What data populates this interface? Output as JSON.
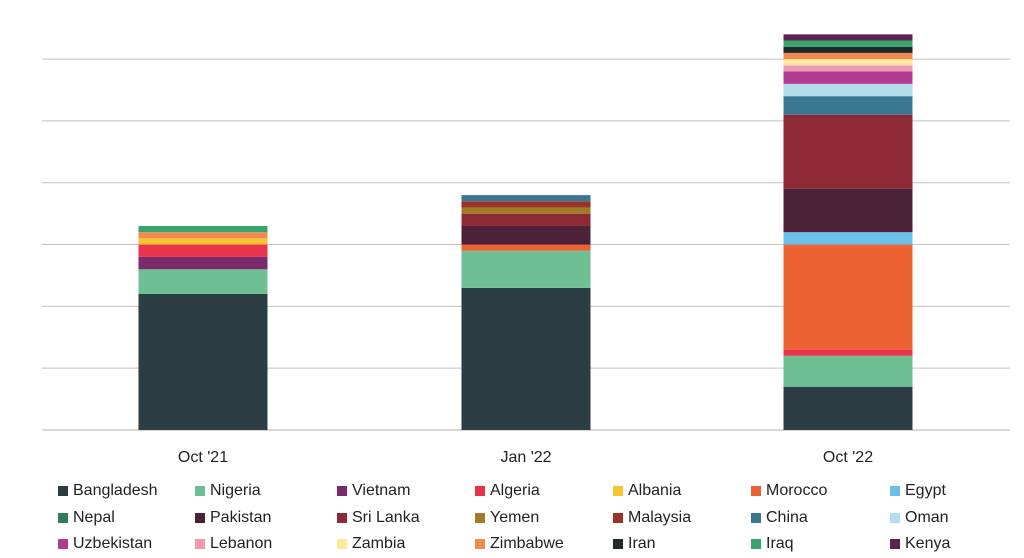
{
  "chart_data": {
    "type": "bar",
    "stacked": true,
    "title": "",
    "xlabel": "",
    "ylabel": "",
    "y_axis_labels_shown": false,
    "grid": true,
    "legend_placement": "bottom",
    "categories": [
      "Oct '21",
      "Jan '22",
      "Oct '22"
    ],
    "series": [
      {
        "name": "Bangladesh",
        "color": "#2c3e44",
        "values": [
          22,
          23,
          7
        ]
      },
      {
        "name": "Nigeria",
        "color": "#6fbf94",
        "values": [
          4,
          6,
          5
        ]
      },
      {
        "name": "Vietnam",
        "color": "#7b2a6e",
        "values": [
          2,
          0,
          0
        ]
      },
      {
        "name": "Algeria",
        "color": "#e8334a",
        "values": [
          2,
          0,
          1
        ]
      },
      {
        "name": "Albania",
        "color": "#f7c531",
        "values": [
          1,
          0,
          0
        ]
      },
      {
        "name": "Morocco",
        "color": "#ec6233",
        "values": [
          0,
          1,
          17
        ]
      },
      {
        "name": "Egypt",
        "color": "#6cc0e8",
        "values": [
          0,
          0,
          2
        ]
      },
      {
        "name": "Nepal",
        "color": "#2e7d5b",
        "values": [
          0,
          0,
          0
        ]
      },
      {
        "name": "Pakistan",
        "color": "#4b2238",
        "values": [
          0,
          3,
          7
        ]
      },
      {
        "name": "Sri Lanka",
        "color": "#8e2a35",
        "values": [
          0,
          2,
          12
        ]
      },
      {
        "name": "Yemen",
        "color": "#a07d24",
        "values": [
          0,
          1,
          0
        ]
      },
      {
        "name": "Malaysia",
        "color": "#9b3228",
        "values": [
          0,
          1,
          0
        ]
      },
      {
        "name": "China",
        "color": "#3a7891",
        "values": [
          0,
          1,
          3
        ]
      },
      {
        "name": "Oman",
        "color": "#b3dcec",
        "values": [
          0,
          0,
          2
        ]
      },
      {
        "name": "Uzbekistan",
        "color": "#b03a90",
        "values": [
          0,
          0,
          2
        ]
      },
      {
        "name": "Lebanon",
        "color": "#ee9bb0",
        "values": [
          0,
          0,
          1
        ]
      },
      {
        "name": "Zambia",
        "color": "#fde9a0",
        "values": [
          0,
          0,
          1
        ]
      },
      {
        "name": "Zimbabwe",
        "color": "#f2894f",
        "values": [
          1,
          0,
          1
        ]
      },
      {
        "name": "Iran",
        "color": "#1f2a2a",
        "values": [
          0,
          0,
          1
        ]
      },
      {
        "name": "Iraq",
        "color": "#38a56e",
        "values": [
          1,
          0,
          1
        ]
      },
      {
        "name": "Kenya",
        "color": "#5a2350",
        "values": [
          0,
          0,
          1
        ]
      }
    ],
    "ylim": [
      0,
      66
    ],
    "gridlines": [
      10,
      20,
      30,
      40,
      50,
      60
    ]
  },
  "legend": {
    "rows": [
      [
        "Bangladesh",
        "Nigeria",
        "Vietnam",
        "Algeria",
        "Albania",
        "Morocco",
        "Egypt"
      ],
      [
        "Nepal",
        "Pakistan",
        "Sri Lanka",
        "Yemen",
        "Malaysia",
        "China",
        "Oman"
      ],
      [
        "Uzbekistan",
        "Lebanon",
        "Zambia",
        "Zimbabwe",
        "Iran",
        "Iraq",
        "Kenya"
      ]
    ]
  }
}
